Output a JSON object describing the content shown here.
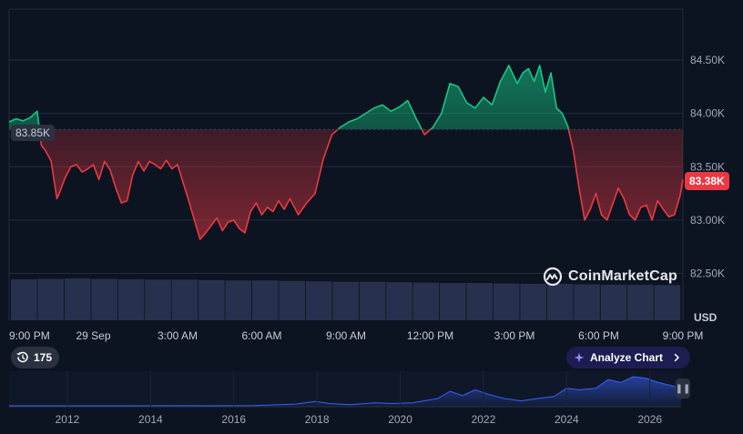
{
  "chart_data": {
    "type": "line",
    "currency": "USD",
    "y_ticks": [
      "82.50K",
      "83.00K",
      "83.50K",
      "84.00K",
      "84.50K"
    ],
    "y_tick_values": [
      82500,
      83000,
      83500,
      84000,
      84500
    ],
    "ylim": [
      82000,
      85000
    ],
    "x_ticks": [
      "9:00 PM",
      "29 Sep",
      "3:00 AM",
      "6:00 AM",
      "9:00 AM",
      "12:00 PM",
      "3:00 PM",
      "6:00 PM",
      "9:00 PM"
    ],
    "x_tick_hours": [
      0,
      3,
      6,
      9,
      12,
      15,
      18,
      21,
      24
    ],
    "open_label": "83.85K",
    "open_value": 83850,
    "last_label": "83.38K",
    "last_value": 83380,
    "price_series": {
      "hours": [
        0,
        0.25,
        0.5,
        0.75,
        1.0,
        1.15,
        1.3,
        1.5,
        1.7,
        1.8,
        2.0,
        2.2,
        2.4,
        2.6,
        2.8,
        3.0,
        3.2,
        3.4,
        3.6,
        3.8,
        4.0,
        4.2,
        4.4,
        4.6,
        4.8,
        5.0,
        5.2,
        5.4,
        5.6,
        5.8,
        6.0,
        6.2,
        6.4,
        6.6,
        6.8,
        7.0,
        7.2,
        7.4,
        7.6,
        7.8,
        8.0,
        8.2,
        8.4,
        8.6,
        8.8,
        9.0,
        9.2,
        9.4,
        9.6,
        9.8,
        10.0,
        10.3,
        10.6,
        10.9,
        11.2,
        11.5,
        11.8,
        12.1,
        12.4,
        12.7,
        13.0,
        13.3,
        13.6,
        13.9,
        14.2,
        14.5,
        14.8,
        15.1,
        15.4,
        15.7,
        16.0,
        16.3,
        16.6,
        16.9,
        17.2,
        17.5,
        17.8,
        18.1,
        18.3,
        18.5,
        18.7,
        18.9,
        19.1,
        19.3,
        19.5,
        19.7,
        19.9,
        20.1,
        20.3,
        20.5,
        20.7,
        20.9,
        21.1,
        21.3,
        21.5,
        21.7,
        21.9,
        22.1,
        22.3,
        22.5,
        22.7,
        22.9,
        23.1,
        23.3,
        23.5,
        23.7,
        23.9,
        24.0
      ],
      "values": [
        83920,
        83950,
        83930,
        83960,
        84020,
        83700,
        83650,
        83550,
        83200,
        83260,
        83400,
        83500,
        83520,
        83450,
        83480,
        83520,
        83380,
        83550,
        83470,
        83300,
        83160,
        83180,
        83420,
        83550,
        83460,
        83550,
        83520,
        83480,
        83560,
        83480,
        83520,
        83350,
        83180,
        83000,
        82820,
        82880,
        82950,
        83020,
        82900,
        82980,
        83000,
        82920,
        82880,
        83080,
        83160,
        83050,
        83120,
        83080,
        83180,
        83100,
        83200,
        83050,
        83160,
        83250,
        83580,
        83800,
        83870,
        83920,
        83950,
        84000,
        84050,
        84080,
        84020,
        84060,
        84120,
        83950,
        83800,
        83870,
        84000,
        84280,
        84250,
        84100,
        84050,
        84150,
        84080,
        84300,
        84450,
        84280,
        84380,
        84420,
        84300,
        84450,
        84200,
        84380,
        84050,
        84000,
        83880,
        83650,
        83300,
        83000,
        83100,
        83250,
        83050,
        83000,
        83150,
        83300,
        83200,
        83050,
        83000,
        83120,
        83140,
        83000,
        83180,
        83100,
        83030,
        83050,
        83230,
        83380
      ]
    },
    "volume_series": {
      "note_unit": "relative",
      "values": [
        0.98,
        0.99,
        1.0,
        0.99,
        0.98,
        0.97,
        0.97,
        0.96,
        0.95,
        0.95,
        0.94,
        0.93,
        0.92,
        0.92,
        0.91,
        0.9,
        0.89,
        0.89,
        0.88,
        0.87,
        0.87,
        0.86,
        0.85,
        0.85,
        0.84
      ]
    },
    "navigator": {
      "year_ticks": [
        "2012",
        "2014",
        "2016",
        "2018",
        "2020",
        "2022",
        "2024",
        "2026"
      ],
      "year_values": [
        2012,
        2014,
        2016,
        2018,
        2020,
        2022,
        2024,
        2026
      ],
      "range": [
        2010.6,
        2026.75
      ],
      "years": [
        2010.6,
        2011.5,
        2012.5,
        2013.5,
        2014.5,
        2015.5,
        2016.5,
        2017.5,
        2017.95,
        2018.3,
        2018.8,
        2019.4,
        2019.8,
        2020.3,
        2020.9,
        2021.2,
        2021.5,
        2021.8,
        2022.1,
        2022.5,
        2022.9,
        2023.3,
        2023.7,
        2024.0,
        2024.3,
        2024.7,
        2025.0,
        2025.3,
        2025.6,
        2025.9,
        2026.2,
        2026.5,
        2026.75
      ],
      "values": [
        0.0,
        0.0,
        0.0,
        0.0,
        0.005,
        0.002,
        0.008,
        0.06,
        0.15,
        0.08,
        0.04,
        0.1,
        0.08,
        0.1,
        0.25,
        0.5,
        0.35,
        0.55,
        0.4,
        0.25,
        0.17,
        0.25,
        0.32,
        0.6,
        0.55,
        0.6,
        0.9,
        0.8,
        1.0,
        0.95,
        0.8,
        0.7,
        0.6
      ]
    }
  },
  "watermark": {
    "brand": "CoinMarketCap"
  },
  "controls": {
    "history_label": "175",
    "analyze_label": "Analyze Chart"
  },
  "icons": {
    "history": "history-clock-icon",
    "analyze": "sparkle-icon",
    "chevron": "chevron-right-icon",
    "pause": "pause-icon"
  },
  "colors": {
    "background": "#0d1421",
    "up": "#16c784",
    "down": "#ea3943",
    "volume": "#2a3352",
    "navigator_line": "#3861fb",
    "analyze_bg": "#1e1d52"
  }
}
